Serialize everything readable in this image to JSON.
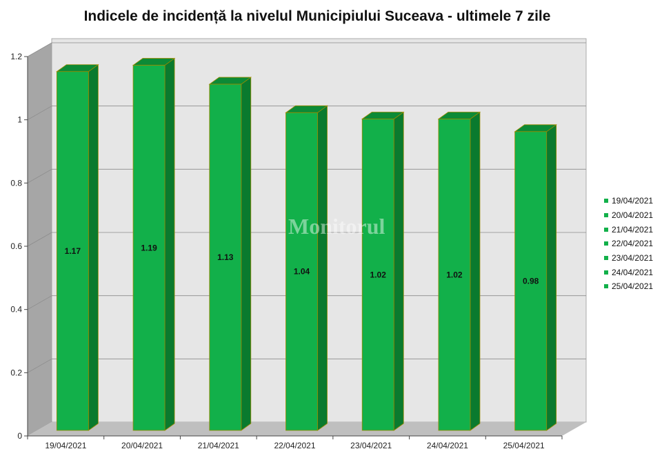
{
  "chart_data": {
    "type": "bar",
    "title": "Indicele de incidență la nivelul Municipiului Suceava - ultimele 7 zile",
    "categories": [
      "19/04/2021",
      "20/04/2021",
      "21/04/2021",
      "22/04/2021",
      "23/04/2021",
      "24/04/2021",
      "25/04/2021"
    ],
    "values": [
      1.17,
      1.19,
      1.13,
      1.04,
      1.02,
      1.02,
      0.98
    ],
    "data_labels": [
      "1.17",
      "1.19",
      "1.13",
      "1.04",
      "1.02",
      "1.02",
      "0.98"
    ],
    "ylim": [
      0,
      1.2
    ],
    "yticks": [
      0,
      0.2,
      0.4,
      0.6,
      0.8,
      1,
      1.2
    ],
    "ytick_labels": [
      "0",
      "0.2",
      "0.4",
      "0.6",
      "0.8",
      "1",
      "1.2"
    ],
    "grid": true,
    "legend": "right",
    "style": "3d-bar"
  },
  "colors": {
    "bar_front": "#12b04a",
    "bar_side": "#0a7a2e",
    "bar_top": "#0c8a36",
    "bar_edge": "#9a8a00",
    "plot_wall": "#e6e6e6",
    "plot_side_wall": "#a6a6a6",
    "floor": "#bfbfbf",
    "gridline": "#8c8c8c"
  }
}
